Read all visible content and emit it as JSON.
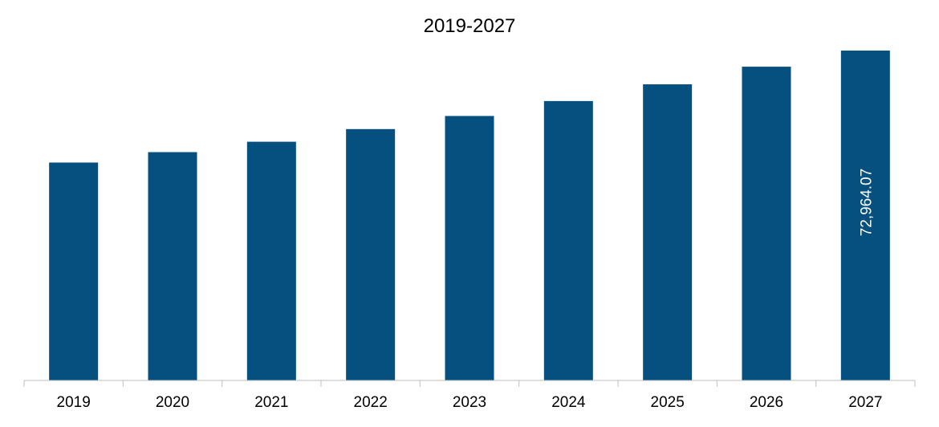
{
  "chart_data": {
    "type": "bar",
    "title": "2019-2027",
    "categories": [
      "2019",
      "2020",
      "2021",
      "2022",
      "2023",
      "2024",
      "2025",
      "2026",
      "2027"
    ],
    "values": [
      48200,
      50500,
      52800,
      55600,
      58500,
      61800,
      65500,
      69400,
      72964.07
    ],
    "data_labels": [
      "",
      "",
      "",
      "",
      "",
      "",
      "",
      "",
      "72,964.07"
    ],
    "bar_color": "#06507F",
    "axis_color": "#BFBFBF",
    "ylim": [
      0,
      73500
    ],
    "grid": false,
    "legend": false
  }
}
